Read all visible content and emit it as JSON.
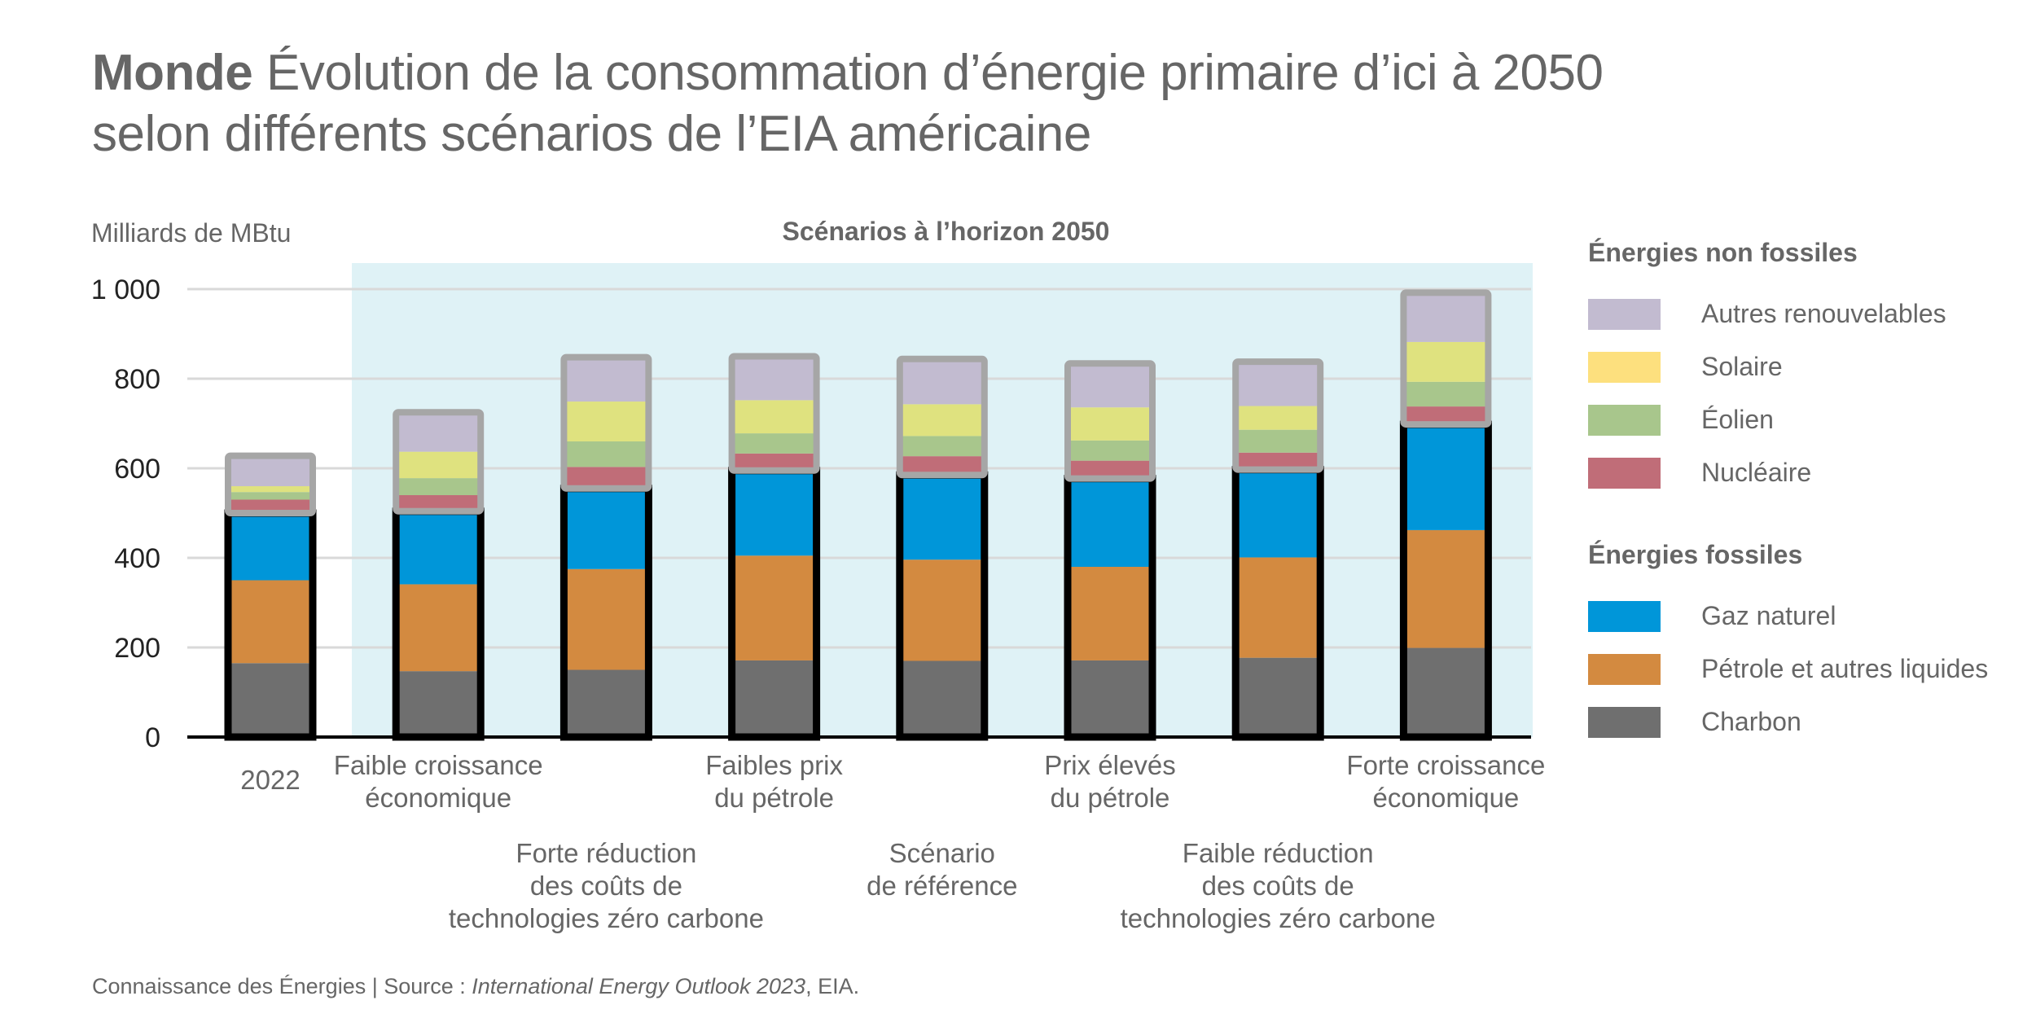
{
  "title": {
    "bold": "Monde",
    "line1": "Évolution de la consommation d’énergie primaire d’ici à 2050",
    "line2": "selon différents scénarios de l’EIA américaine"
  },
  "footer": {
    "prefix": "Connaissance des Énergies | Source : ",
    "source_italic": "International Energy Outlook 2023",
    "suffix": ", EIA."
  },
  "legend": {
    "groups": [
      {
        "title": "Énergies non fossiles",
        "items": [
          {
            "label": "Autres renouvelables",
            "color": "#c2bbd0"
          },
          {
            "label": "Solaire",
            "color": "#fde07e"
          },
          {
            "label": "Éolien",
            "color": "#a8c68c"
          },
          {
            "label": "Nucléaire",
            "color": "#c06d78"
          }
        ]
      },
      {
        "title": "Énergies fossiles",
        "items": [
          {
            "label": "Gaz naturel",
            "color": "#0096d9"
          },
          {
            "label": "Pétrole et autres liquides",
            "color": "#d38a40"
          },
          {
            "label": "Charbon",
            "color": "#6f6f6f"
          }
        ]
      }
    ]
  },
  "chart_data": {
    "type": "bar",
    "stacked": true,
    "title": "Monde Évolution de la consommation d’énergie primaire d’ici à 2050 selon différents scénarios de l’EIA américaine",
    "ylabel": "Milliards de MBtu",
    "xlabel": "",
    "ylim": [
      0,
      1000
    ],
    "yticks": [
      0,
      200,
      400,
      600,
      800,
      1000
    ],
    "ytick_labels": [
      "0",
      "200",
      "400",
      "600",
      "800",
      "1 000"
    ],
    "grid": true,
    "highlight_region_label": "Scénarios à l’horizon 2050",
    "highlight_region_categories": [
      1,
      7
    ],
    "categories": [
      [
        "2022"
      ],
      [
        "Faible croissance",
        "économique"
      ],
      [
        "Forte réduction",
        "des coûts de",
        "technologies zéro carbone"
      ],
      [
        "Faibles prix",
        "du pétrole"
      ],
      [
        "Scénario",
        "de référence"
      ],
      [
        "Prix élevés",
        "du pétrole"
      ],
      [
        "Faible réduction",
        "des coûts de",
        "technologies zéro carbone"
      ],
      [
        "Forte croissance",
        "économique"
      ]
    ],
    "label_rows": [
      0,
      0,
      1,
      0,
      1,
      0,
      1,
      0
    ],
    "series": [
      {
        "name": "Charbon",
        "group": "fossil",
        "color": "#6f6f6f",
        "values": [
          165,
          147,
          150,
          171,
          170,
          171,
          177,
          199
        ]
      },
      {
        "name": "Pétrole et autres liquides",
        "group": "fossil",
        "color": "#d38a40",
        "values": [
          185,
          194,
          225,
          234,
          226,
          209,
          224,
          263
        ]
      },
      {
        "name": "Gaz naturel",
        "group": "fossil",
        "color": "#0096d9",
        "values": [
          150,
          163,
          180,
          190,
          189,
          197,
          196,
          236
        ]
      },
      {
        "name": "Nucléaire",
        "group": "non-fossil",
        "color": "#c06d78",
        "values": [
          30,
          36,
          48,
          38,
          42,
          40,
          38,
          40
        ]
      },
      {
        "name": "Éolien",
        "group": "non-fossil",
        "color": "#a8c68c",
        "values": [
          17,
          38,
          57,
          45,
          45,
          45,
          51,
          55
        ]
      },
      {
        "name": "Solaire",
        "group": "non-fossil",
        "color": "#dfe27f",
        "values": [
          13,
          59,
          89,
          74,
          71,
          74,
          53,
          89
        ]
      },
      {
        "name": "Autres renouvelables",
        "group": "non-fossil",
        "color": "#c2bbd0",
        "values": [
          68,
          88,
          99,
          98,
          101,
          98,
          99,
          110
        ]
      }
    ],
    "legend_position": "right"
  }
}
